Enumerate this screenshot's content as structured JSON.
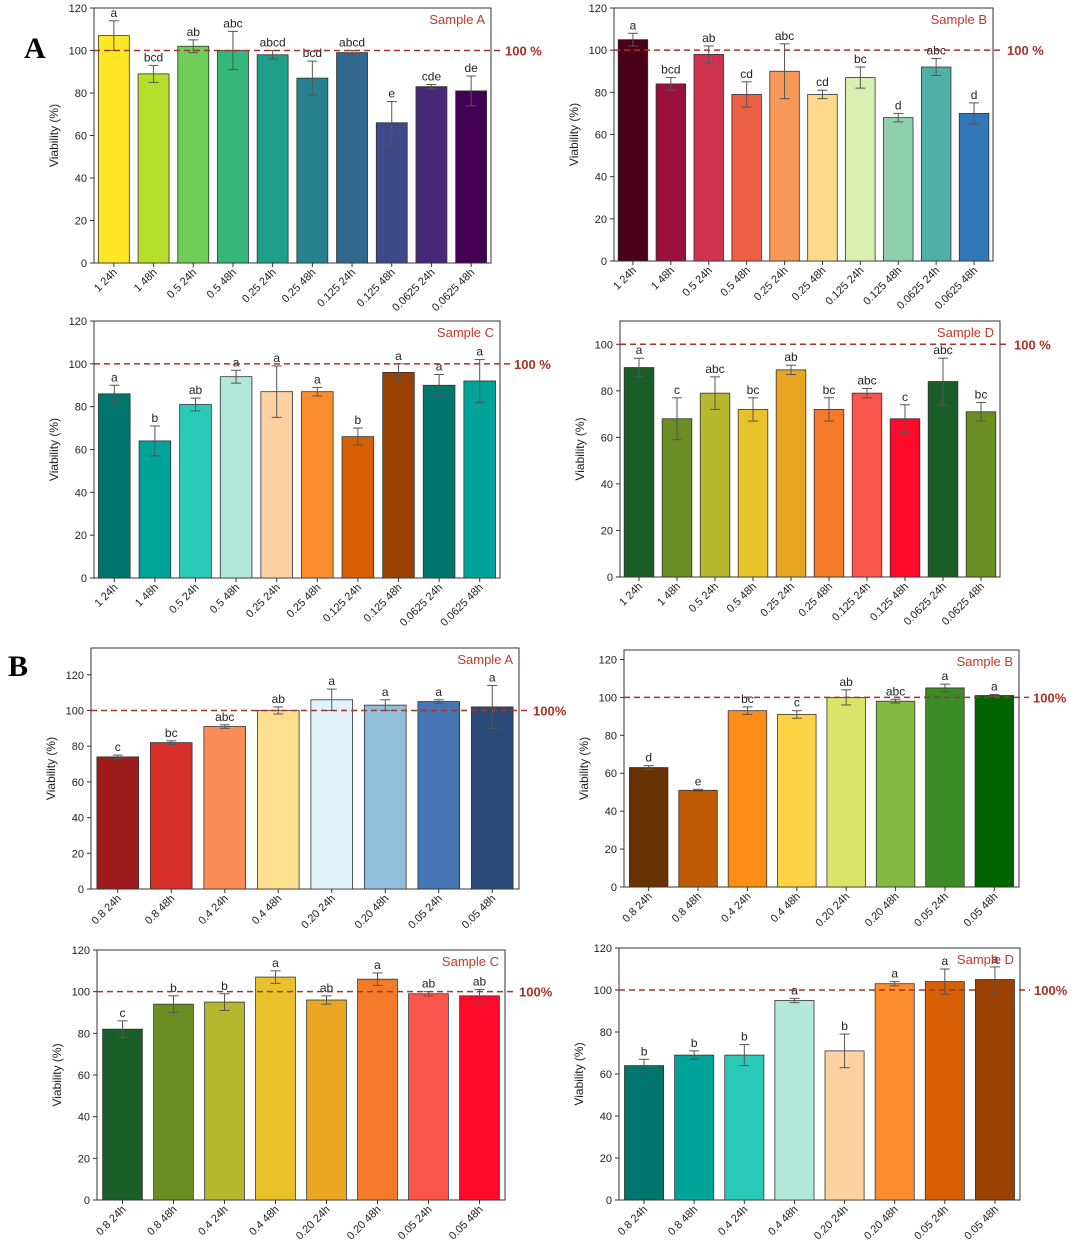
{
  "panels": [
    {
      "label": "A"
    },
    {
      "label": "B"
    }
  ],
  "chart_data": [
    {
      "type": "bar",
      "panel": "A",
      "title": "Sample A",
      "ylabel": "Viability (%)",
      "ylim": [
        0,
        120
      ],
      "yticks": [
        0,
        20,
        40,
        60,
        80,
        100,
        120
      ],
      "ref_value": 100,
      "ref_label": "100 %",
      "categories": [
        "1 24h",
        "1 48h",
        "0.5 24h",
        "0.5 48h",
        "0.25 24h",
        "0.25 48h",
        "0.125 24h",
        "0.125 48h",
        "0.0625 24h",
        "0.0625 48h"
      ],
      "values": [
        107,
        89,
        102,
        100,
        98,
        87,
        99,
        66,
        83,
        81
      ],
      "errors": [
        7,
        4,
        3,
        9,
        2,
        8,
        1,
        10,
        1,
        7
      ],
      "letters": [
        "a",
        "bcd",
        "ab",
        "abc",
        "abcd",
        "bcd",
        "abcd",
        "e",
        "cde",
        "de"
      ],
      "colors": [
        "#fde725",
        "#b5de2b",
        "#6ece58",
        "#35b779",
        "#1f9e89",
        "#26828e",
        "#31688e",
        "#3e4989",
        "#482878",
        "#440154"
      ]
    },
    {
      "type": "bar",
      "panel": "A",
      "title": "Sample B",
      "ylabel": "Viability (%)",
      "ylim": [
        0,
        120
      ],
      "yticks": [
        0,
        20,
        40,
        60,
        80,
        100,
        120
      ],
      "ref_value": 100,
      "ref_label": "100 %",
      "categories": [
        "1 24h",
        "1 48h",
        "0.5 24h",
        "0.5 48h",
        "0.25 24h",
        "0.25 48h",
        "0.125 24h",
        "0.125 48h",
        "0.0625 24h",
        "0.0625 48h"
      ],
      "values": [
        105,
        84,
        98,
        79,
        90,
        79,
        87,
        68,
        92,
        70
      ],
      "errors": [
        3,
        3,
        4,
        6,
        13,
        2,
        5,
        2,
        4,
        5
      ],
      "letters": [
        "a",
        "bcd",
        "ab",
        "cd",
        "abc",
        "cd",
        "bc",
        "d",
        "abc",
        "d"
      ],
      "colors": [
        "#4a0018",
        "#9b0f3c",
        "#d0334e",
        "#ec5f45",
        "#f89858",
        "#fdd98b",
        "#dcefb2",
        "#8fcfab",
        "#4eb0a6",
        "#3378b6"
      ]
    },
    {
      "type": "bar",
      "panel": "A",
      "title": "Sample C",
      "ylabel": "Viability (%)",
      "ylim": [
        0,
        120
      ],
      "yticks": [
        0,
        20,
        40,
        60,
        80,
        100,
        120
      ],
      "ref_value": 100,
      "ref_label": "100 %",
      "categories": [
        "1 24h",
        "1 48h",
        "0.5 24h",
        "0.5 48h",
        "0.25 24h",
        "0.25 48h",
        "0.125 24h",
        "0.125 48h",
        "0.0625 24h",
        "0.0625 48h"
      ],
      "values": [
        86,
        64,
        81,
        94,
        87,
        87,
        66,
        96,
        90,
        92
      ],
      "errors": [
        4,
        7,
        3,
        3,
        12,
        2,
        4,
        4,
        5,
        10
      ],
      "letters": [
        "a",
        "b",
        "ab",
        "a",
        "a",
        "a",
        "b",
        "a",
        "a",
        "a"
      ],
      "colors": [
        "#00766f",
        "#00a399",
        "#2ac9b8",
        "#b2e8d9",
        "#fdd1a0",
        "#fc8d2e",
        "#d75f06",
        "#9a4000",
        "#00766f",
        "#00a399"
      ]
    },
    {
      "type": "bar",
      "panel": "A",
      "title": "Sample D",
      "ylabel": "Viability (%)",
      "ylim": [
        0,
        110
      ],
      "yticks": [
        0,
        20,
        40,
        60,
        80,
        100
      ],
      "ref_value": 100,
      "ref_label": "100 %",
      "categories": [
        "1 24h",
        "1 48h",
        "0.5 24h",
        "0.5 48h",
        "0.25 24h",
        "0.25 48h",
        "0.125 24h",
        "0.125 48h",
        "0.0625 24h",
        "0.0625 48h"
      ],
      "values": [
        90,
        68,
        79,
        72,
        89,
        72,
        79,
        68,
        84,
        71
      ],
      "errors": [
        4,
        9,
        7,
        5,
        2,
        5,
        2,
        6,
        10,
        4
      ],
      "letters": [
        "a",
        "c",
        "abc",
        "bc",
        "ab",
        "bc",
        "abc",
        "c",
        "abc",
        "bc"
      ],
      "colors": [
        "#1b5e2a",
        "#6b8e23",
        "#b5b82f",
        "#e9c12b",
        "#eaa523",
        "#f47b2a",
        "#fa554a",
        "#ff0a2a",
        "#1b5e2a",
        "#6b8e23"
      ]
    },
    {
      "type": "bar",
      "panel": "B",
      "title": "Sample A",
      "ylabel": "Viability (%)",
      "ylim": [
        0,
        135
      ],
      "yticks": [
        0,
        20,
        40,
        60,
        80,
        100,
        120
      ],
      "ref_value": 100,
      "ref_label": "100%",
      "categories": [
        "0.8 24h",
        "0.8 48h",
        "0.4 24h",
        "0.4 48h",
        "0.20 24h",
        "0.20 48h",
        "0.05 24h",
        "0.05 48h"
      ],
      "values": [
        74,
        82,
        91,
        100,
        106,
        103,
        105,
        102
      ],
      "errors": [
        1,
        1,
        1,
        2,
        6,
        3,
        1,
        12
      ],
      "letters": [
        "c",
        "bc",
        "abc",
        "ab",
        "a",
        "a",
        "a",
        "a"
      ],
      "colors": [
        "#9e1c1c",
        "#d7302a",
        "#fc8c56",
        "#fedf90",
        "#e0f3f8",
        "#91bfdb",
        "#4575b4",
        "#2a4a77"
      ]
    },
    {
      "type": "bar",
      "panel": "B",
      "title": "Sample B",
      "ylabel": "Viability (%)",
      "ylim": [
        0,
        125
      ],
      "yticks": [
        0,
        20,
        40,
        60,
        80,
        100,
        120
      ],
      "ref_value": 100,
      "ref_label": "100%",
      "categories": [
        "0.8 24h",
        "0.8 48h",
        "0.4 24h",
        "0.4 48h",
        "0.20 24h",
        "0.20 48h",
        "0.05 24h",
        "0.05 48h"
      ],
      "values": [
        63,
        51,
        93,
        91,
        100,
        98,
        105,
        101
      ],
      "errors": [
        1,
        0.5,
        2,
        2,
        4,
        1,
        2,
        0.5
      ],
      "letters": [
        "d",
        "e",
        "bc",
        "c",
        "ab",
        "abc",
        "a",
        "a"
      ],
      "colors": [
        "#663300",
        "#bf5b04",
        "#fd8d16",
        "#fdd345",
        "#d8e569",
        "#86b844",
        "#3b8c26",
        "#006400"
      ]
    },
    {
      "type": "bar",
      "panel": "B",
      "title": "Sample C",
      "ylabel": "Viability (%)",
      "ylim": [
        0,
        120
      ],
      "yticks": [
        0,
        20,
        40,
        60,
        80,
        100,
        120
      ],
      "ref_value": 100,
      "ref_label": "100%",
      "categories": [
        "0.8 24h",
        "0.8 48h",
        "0.4 24h",
        "0.4 48h",
        "0.20 24h",
        "0.20 48h",
        "0.05 24h",
        "0.05 48h"
      ],
      "values": [
        82,
        94,
        95,
        107,
        96,
        106,
        99,
        98
      ],
      "errors": [
        4,
        4,
        4,
        3,
        2,
        3,
        1,
        3
      ],
      "letters": [
        "c",
        "b",
        "b",
        "a",
        "ab",
        "a",
        "ab",
        "ab"
      ],
      "colors": [
        "#1b5e2a",
        "#6b8e23",
        "#b5b82f",
        "#e9c12b",
        "#eaa523",
        "#f47b2a",
        "#fa554a",
        "#ff0a2a"
      ]
    },
    {
      "type": "bar",
      "panel": "B",
      "title": "Sample D",
      "ylabel": "Viability (%)",
      "ylim": [
        0,
        120
      ],
      "yticks": [
        0,
        20,
        40,
        60,
        80,
        100,
        120
      ],
      "ref_value": 100,
      "ref_label": "100%",
      "categories": [
        "0.8 24h",
        "0.8 48h",
        "0.4 24h",
        "0.4 48h",
        "0.20 24h",
        "0.20 48h",
        "0.05 24h",
        "0.05 48h"
      ],
      "values": [
        64,
        69,
        69,
        95,
        71,
        103,
        104,
        105
      ],
      "errors": [
        3,
        2,
        5,
        1,
        8,
        1,
        6,
        6
      ],
      "letters": [
        "b",
        "b",
        "b",
        "a",
        "b",
        "a",
        "a",
        "a"
      ],
      "colors": [
        "#00766f",
        "#00a399",
        "#2ac9b8",
        "#b2e8d9",
        "#fdd1a0",
        "#fc8d2e",
        "#d75f06",
        "#9a4000"
      ]
    }
  ]
}
